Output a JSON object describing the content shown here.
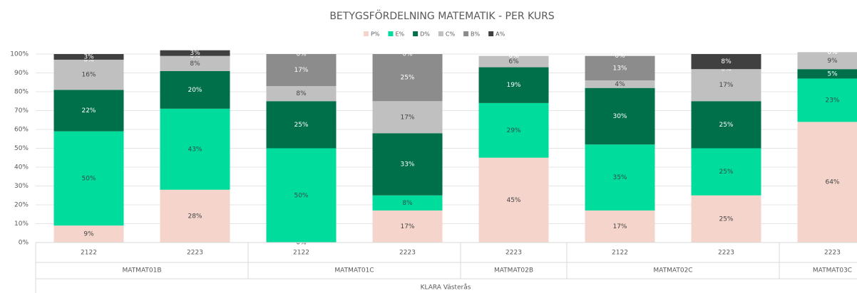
{
  "chart_data": {
    "type": "stacked_bar_percent",
    "title": "BETYGSFÖRDELNING MATEMATIK - PER KURS",
    "outer_group": "KLARA Västerås",
    "groups": [
      {
        "name": "MATMAT01B",
        "categories": [
          "2122",
          "2223"
        ]
      },
      {
        "name": "MATMAT01C",
        "categories": [
          "2122",
          "2223"
        ]
      },
      {
        "name": "MATMAT02B",
        "categories": [
          "2223"
        ]
      },
      {
        "name": "MATMAT02C",
        "categories": [
          "2122",
          "2223"
        ]
      },
      {
        "name": "MATMAT03C",
        "categories": [
          "2223"
        ]
      }
    ],
    "series": [
      {
        "name": "P%",
        "color": "#f5d5cb",
        "text_color": "#444444",
        "values": [
          9,
          28,
          0,
          17,
          45,
          17,
          25,
          64
        ],
        "value_labels": [
          "9%",
          "28%",
          "0%",
          "17%",
          "45%",
          "17%",
          "25%",
          "64%"
        ]
      },
      {
        "name": "E%",
        "color": "#00dc9c",
        "text_color": "#2f4f44",
        "values": [
          50,
          43,
          50,
          8,
          29,
          35,
          25,
          23
        ],
        "value_labels": [
          "50%",
          "43%",
          "50%",
          "8%",
          "29%",
          "35%",
          "25%",
          "23%"
        ]
      },
      {
        "name": "D%",
        "color": "#00704a",
        "text_color": "#ffffff",
        "values": [
          22,
          20,
          25,
          33,
          19,
          30,
          25,
          5
        ],
        "value_labels": [
          "22%",
          "20%",
          "25%",
          "33%",
          "19%",
          "30%",
          "25%",
          "5%"
        ]
      },
      {
        "name": "C%",
        "color": "#c0c0c0",
        "text_color": "#444444",
        "values": [
          16,
          8,
          8,
          17,
          6,
          4,
          17,
          9
        ],
        "value_labels": [
          "16%",
          "8%",
          "8%",
          "17%",
          "6%",
          "4%",
          "17%",
          "9%"
        ]
      },
      {
        "name": "B%",
        "color": "#8c8c8c",
        "text_color": "#ffffff",
        "values": [
          0,
          0,
          17,
          25,
          0,
          13,
          0,
          0
        ],
        "value_labels": [
          "0%",
          "0%",
          "17%",
          "25%",
          "0%",
          "13%",
          "0%",
          "0%"
        ]
      },
      {
        "name": "A%",
        "color": "#404040",
        "text_color": "#ffffff",
        "values": [
          3,
          3,
          0,
          0,
          0,
          0,
          8,
          0
        ],
        "value_labels": [
          "3%",
          "3%",
          "0%",
          "0%",
          "0%",
          "0%",
          "8%",
          "0%"
        ]
      }
    ],
    "ylim": [
      0,
      100
    ],
    "yticks": [
      {
        "value": 0,
        "label": "0%"
      },
      {
        "value": 10,
        "label": "10%"
      },
      {
        "value": 20,
        "label": "20%"
      },
      {
        "value": 30,
        "label": "30%"
      },
      {
        "value": 40,
        "label": "40%"
      },
      {
        "value": 50,
        "label": "50%"
      },
      {
        "value": 60,
        "label": "60%"
      },
      {
        "value": 70,
        "label": "70%"
      },
      {
        "value": 80,
        "label": "80%"
      },
      {
        "value": 90,
        "label": "90%"
      },
      {
        "value": 100,
        "label": "100%"
      }
    ],
    "grid": true
  }
}
